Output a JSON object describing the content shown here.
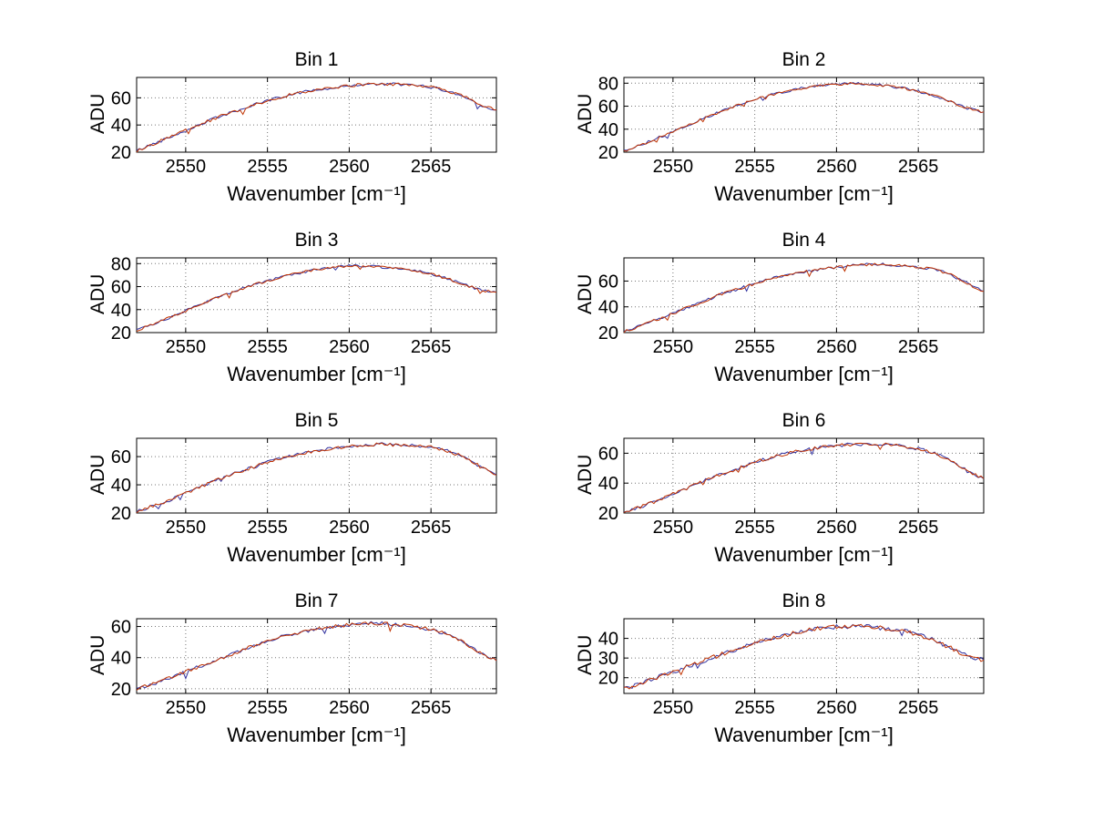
{
  "figure": {
    "background": "#ffffff"
  },
  "chart_data": {
    "type": "line",
    "common": {
      "xlabel": "Wavenumber [cm⁻¹]",
      "ylabel": "ADU",
      "xlim": [
        2547,
        2569
      ],
      "xticks": [
        2550,
        2555,
        2560,
        2565
      ],
      "x": [
        2547,
        2548,
        2549,
        2550,
        2551,
        2552,
        2553,
        2554,
        2555,
        2556,
        2557,
        2558,
        2559,
        2560,
        2561,
        2562,
        2563,
        2564,
        2565,
        2566,
        2567,
        2568,
        2569
      ],
      "grid": "dotted",
      "legend": "none",
      "note": "each subplot shows two nearly identical overlaid noisy spectra",
      "series_styles": [
        {
          "name": "trace-blue",
          "color": "#3232a0"
        },
        {
          "name": "trace-red",
          "color": "#c03200"
        }
      ],
      "noise_amplitude": 1.1,
      "noise_seed": 42
    },
    "charts": [
      {
        "title": "Bin 1",
        "ylim": [
          20,
          75
        ],
        "yticks": [
          20,
          40,
          60
        ],
        "values": [
          21,
          26,
          31,
          36,
          41,
          46,
          50,
          54,
          58,
          61,
          64,
          66,
          67,
          69,
          70,
          70,
          70,
          69,
          68,
          65,
          61,
          55,
          51
        ]
      },
      {
        "title": "Bin 2",
        "ylim": [
          20,
          85
        ],
        "yticks": [
          20,
          40,
          60,
          80
        ],
        "values": [
          21,
          26,
          32,
          38,
          44,
          50,
          56,
          61,
          66,
          70,
          73,
          76,
          78,
          79,
          80,
          79,
          78,
          76,
          73,
          69,
          64,
          58,
          55
        ]
      },
      {
        "title": "Bin 3",
        "ylim": [
          20,
          85
        ],
        "yticks": [
          20,
          40,
          60,
          80
        ],
        "values": [
          22,
          27,
          33,
          39,
          45,
          51,
          56,
          61,
          65,
          69,
          72,
          75,
          77,
          78,
          78,
          77,
          76,
          74,
          71,
          67,
          62,
          57,
          55
        ]
      },
      {
        "title": "Bin 4",
        "ylim": [
          20,
          78
        ],
        "yticks": [
          20,
          40,
          60
        ],
        "values": [
          21,
          25,
          30,
          35,
          40,
          45,
          50,
          54,
          58,
          62,
          65,
          67,
          69,
          71,
          72,
          73,
          73,
          72,
          71,
          69,
          65,
          58,
          52
        ]
      },
      {
        "title": "Bin 5",
        "ylim": [
          20,
          73
        ],
        "yticks": [
          20,
          40,
          60
        ],
        "values": [
          21,
          25,
          29,
          34,
          39,
          44,
          48,
          52,
          56,
          59,
          62,
          64,
          66,
          67,
          68,
          69,
          68,
          68,
          67,
          64,
          60,
          53,
          47
        ]
      },
      {
        "title": "Bin 6",
        "ylim": [
          20,
          70
        ],
        "yticks": [
          20,
          40,
          60
        ],
        "values": [
          21,
          24,
          28,
          33,
          37,
          42,
          46,
          50,
          54,
          57,
          60,
          62,
          64,
          65,
          66,
          66,
          66,
          65,
          63,
          60,
          55,
          48,
          43
        ]
      },
      {
        "title": "Bin 7",
        "ylim": [
          17,
          65
        ],
        "yticks": [
          20,
          40,
          60
        ],
        "values": [
          20,
          23,
          27,
          31,
          35,
          39,
          43,
          47,
          51,
          54,
          56,
          58,
          60,
          61,
          62,
          62,
          61,
          60,
          58,
          55,
          50,
          43,
          38
        ]
      },
      {
        "title": "Bin 8",
        "ylim": [
          12,
          50
        ],
        "yticks": [
          20,
          30,
          40
        ],
        "values": [
          14,
          17,
          20,
          23,
          26,
          29,
          32,
          35,
          38,
          40,
          42,
          44,
          45,
          46,
          46,
          46,
          45,
          44,
          42,
          39,
          35,
          31,
          29
        ]
      }
    ]
  }
}
